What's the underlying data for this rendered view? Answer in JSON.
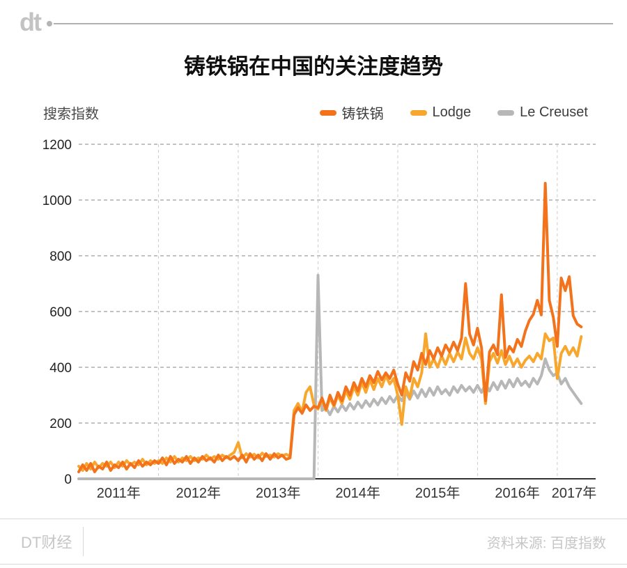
{
  "header": {
    "logo_text": "dt"
  },
  "title": "铸铁锅在中国的关注度趋势",
  "chart_data": {
    "type": "line",
    "title": "铸铁锅在中国的关注度趋势",
    "ylabel": "搜索指数",
    "xlabel": "",
    "x_unit": "year",
    "x_start": 2011.0,
    "x_step": 0.05,
    "x_axis_range": [
      2011,
      2017.42
    ],
    "ylim": [
      0,
      1200
    ],
    "y_ticks": [
      0,
      200,
      400,
      600,
      800,
      1000,
      1200
    ],
    "x_tick_labels": [
      "2011年",
      "2012年",
      "2013年",
      "2014年",
      "2015年",
      "2016年",
      "2017年"
    ],
    "grid": true,
    "legend_position": "top-right",
    "colors": {
      "axis": "#333333",
      "h_grid": "#858585",
      "v_grid": "#cccccc",
      "tick_text": "#222222"
    },
    "series": [
      {
        "name": "铸铁锅",
        "color": "#F2731B",
        "values": [
          25,
          50,
          30,
          55,
          25,
          45,
          35,
          60,
          30,
          50,
          40,
          60,
          35,
          55,
          40,
          65,
          45,
          60,
          50,
          65,
          55,
          75,
          50,
          80,
          55,
          70,
          60,
          80,
          55,
          75,
          60,
          80,
          65,
          75,
          60,
          85,
          65,
          80,
          70,
          80,
          65,
          85,
          60,
          90,
          70,
          85,
          65,
          90,
          70,
          90,
          75,
          85,
          70,
          75,
          230,
          255,
          235,
          265,
          245,
          260,
          255,
          290,
          250,
          300,
          265,
          310,
          280,
          330,
          300,
          345,
          315,
          360,
          330,
          370,
          345,
          385,
          355,
          380,
          360,
          390,
          340,
          300,
          380,
          350,
          420,
          390,
          450,
          410,
          460,
          430,
          470,
          440,
          480,
          455,
          490,
          460,
          505,
          700,
          520,
          480,
          540,
          470,
          280,
          455,
          480,
          445,
          660,
          435,
          475,
          455,
          500,
          475,
          530,
          568,
          590,
          640,
          588,
          1060,
          640,
          580,
          475,
          720,
          675,
          725,
          585,
          555,
          545
        ]
      },
      {
        "name": "Lodge",
        "color": "#F8A72E",
        "values": [
          45,
          30,
          55,
          35,
          60,
          40,
          55,
          45,
          60,
          40,
          60,
          45,
          65,
          50,
          60,
          50,
          70,
          50,
          65,
          55,
          65,
          55,
          75,
          60,
          80,
          60,
          75,
          65,
          80,
          65,
          75,
          70,
          85,
          70,
          80,
          70,
          85,
          75,
          85,
          95,
          130,
          75,
          90,
          78,
          88,
          75,
          92,
          80,
          85,
          78,
          90,
          82,
          88,
          80,
          245,
          270,
          240,
          310,
          330,
          265,
          250,
          285,
          245,
          290,
          260,
          300,
          270,
          315,
          285,
          330,
          300,
          345,
          310,
          355,
          320,
          360,
          330,
          370,
          340,
          360,
          300,
          195,
          330,
          290,
          360,
          330,
          380,
          520,
          400,
          430,
          400,
          440,
          410,
          450,
          420,
          455,
          430,
          505,
          450,
          430,
          470,
          430,
          270,
          420,
          450,
          415,
          460,
          410,
          440,
          405,
          430,
          400,
          425,
          440,
          420,
          450,
          430,
          520,
          495,
          505,
          360,
          450,
          475,
          445,
          470,
          440,
          510
        ]
      },
      {
        "name": "Le Creuset",
        "color": "#B7B7B7",
        "values": [
          0,
          0,
          0,
          0,
          0,
          0,
          0,
          0,
          0,
          0,
          0,
          0,
          0,
          0,
          0,
          0,
          0,
          0,
          0,
          0,
          0,
          0,
          0,
          0,
          0,
          0,
          0,
          0,
          0,
          0,
          0,
          0,
          0,
          0,
          0,
          0,
          0,
          0,
          0,
          0,
          0,
          0,
          0,
          0,
          0,
          0,
          0,
          0,
          0,
          0,
          0,
          0,
          0,
          0,
          0,
          0,
          0,
          0,
          0,
          0,
          730,
          245,
          255,
          230,
          260,
          240,
          265,
          245,
          270,
          250,
          275,
          255,
          280,
          260,
          285,
          265,
          290,
          270,
          295,
          275,
          300,
          280,
          310,
          285,
          315,
          290,
          320,
          295,
          325,
          300,
          330,
          305,
          320,
          300,
          330,
          310,
          335,
          315,
          330,
          310,
          335,
          310,
          340,
          315,
          345,
          320,
          350,
          325,
          355,
          330,
          360,
          335,
          350,
          330,
          360,
          340,
          370,
          430,
          390,
          370,
          380,
          340,
          360,
          330,
          310,
          290,
          270
        ]
      }
    ]
  },
  "footer": {
    "brand": "DT财经",
    "source": "资料来源: 百度指数"
  }
}
